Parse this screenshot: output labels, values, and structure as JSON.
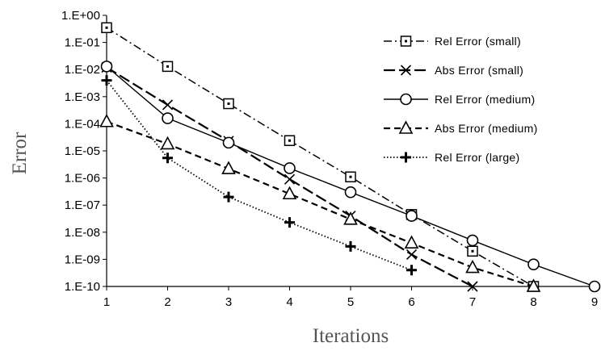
{
  "chart_data": {
    "type": "line",
    "title": "",
    "xlabel": "Iterations",
    "ylabel": "Error",
    "y_scale": "log",
    "ylim": [
      1e-10,
      1
    ],
    "xlim": [
      1,
      9
    ],
    "x_ticks": [
      "1",
      "2",
      "3",
      "4",
      "5",
      "6",
      "7",
      "8",
      "9"
    ],
    "y_ticks": [
      "1.E+00",
      "1.E-01",
      "1.E-02",
      "1.E-03",
      "1.E-04",
      "1.E-05",
      "1.E-06",
      "1.E-07",
      "1.E-08",
      "1.E-09",
      "1.E-10"
    ],
    "grid": false,
    "legend_position": "top-right",
    "series": [
      {
        "name": "Rel Error (small)",
        "line_style": "dash-dot",
        "marker": "square",
        "x": [
          1,
          2,
          3,
          4,
          5,
          6,
          7,
          8
        ],
        "y": [
          0.35,
          0.013,
          0.00055,
          2.4e-05,
          1.1e-06,
          4.5e-08,
          2e-09,
          1e-10
        ]
      },
      {
        "name": "Abs Error (small)",
        "line_style": "long-dash",
        "marker": "x",
        "x": [
          1,
          2,
          3,
          4,
          5,
          6,
          7
        ],
        "y": [
          0.012,
          0.0005,
          2.3e-05,
          9e-07,
          4e-08,
          1.5e-09,
          1e-10
        ]
      },
      {
        "name": "Rel Error (medium)",
        "line_style": "solid",
        "marker": "circle",
        "x": [
          1,
          2,
          3,
          4,
          5,
          6,
          7,
          8,
          9
        ],
        "y": [
          0.013,
          0.00016,
          2e-05,
          2.3e-06,
          3e-07,
          4e-08,
          5e-09,
          6.5e-10,
          1e-10
        ]
      },
      {
        "name": "Abs Error (medium)",
        "line_style": "dash",
        "marker": "triangle",
        "x": [
          1,
          2,
          3,
          4,
          5,
          6,
          7,
          8
        ],
        "y": [
          0.00012,
          1.8e-05,
          2.2e-06,
          2.6e-07,
          3e-08,
          4e-09,
          5e-10,
          1e-10
        ]
      },
      {
        "name": "Rel Error (large)",
        "line_style": "dotted",
        "marker": "plus",
        "x": [
          1,
          2,
          3,
          4,
          5,
          6
        ],
        "y": [
          0.004,
          5.5e-06,
          2e-07,
          2.3e-08,
          3e-09,
          4e-10
        ]
      }
    ],
    "colors": {
      "line": "#000000",
      "marker_fill": "#ffffff"
    }
  }
}
